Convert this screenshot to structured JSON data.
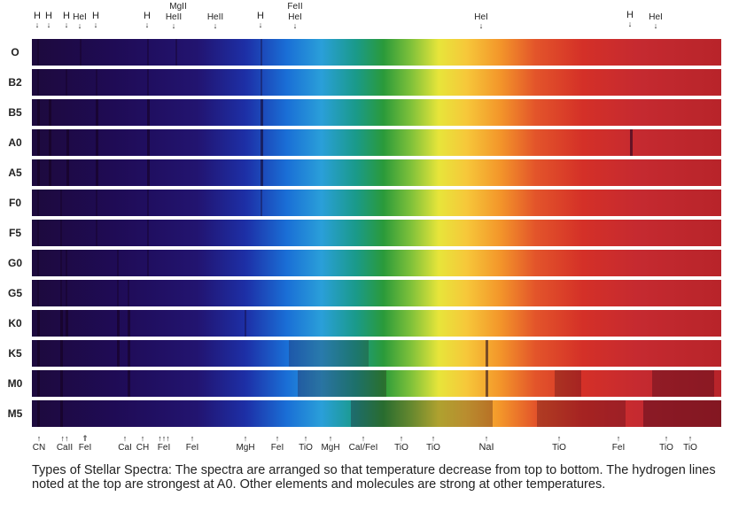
{
  "top_labels": [
    "H",
    "H",
    "H",
    "HeI",
    "H",
    "H",
    "HeII",
    "MgII",
    "HeII",
    "H",
    "FeII",
    "HeI",
    "HeI",
    "H",
    "HeI"
  ],
  "spectral_types": [
    "O",
    "B2",
    "B5",
    "A0",
    "A5",
    "F0",
    "F5",
    "G0",
    "G5",
    "K0",
    "K5",
    "M0",
    "M5"
  ],
  "bottom_labels": [
    "CN",
    "CaII",
    "FeI",
    "CaI",
    "CH",
    "FeI",
    "FeI",
    "MgH",
    "FeI",
    "TiO",
    "MgH",
    "CaI/FeI",
    "TiO",
    "TiO",
    "NaI",
    "TiO",
    "FeI",
    "TiO",
    "TiO"
  ],
  "caption": "Types of Stellar Spectra:  The spectra are arranged so that temperature decrease from top to bottom.  The hydrogen lines noted at the top are strongest at A0.  Other elements and molecules are strong at other temperatures."
}
